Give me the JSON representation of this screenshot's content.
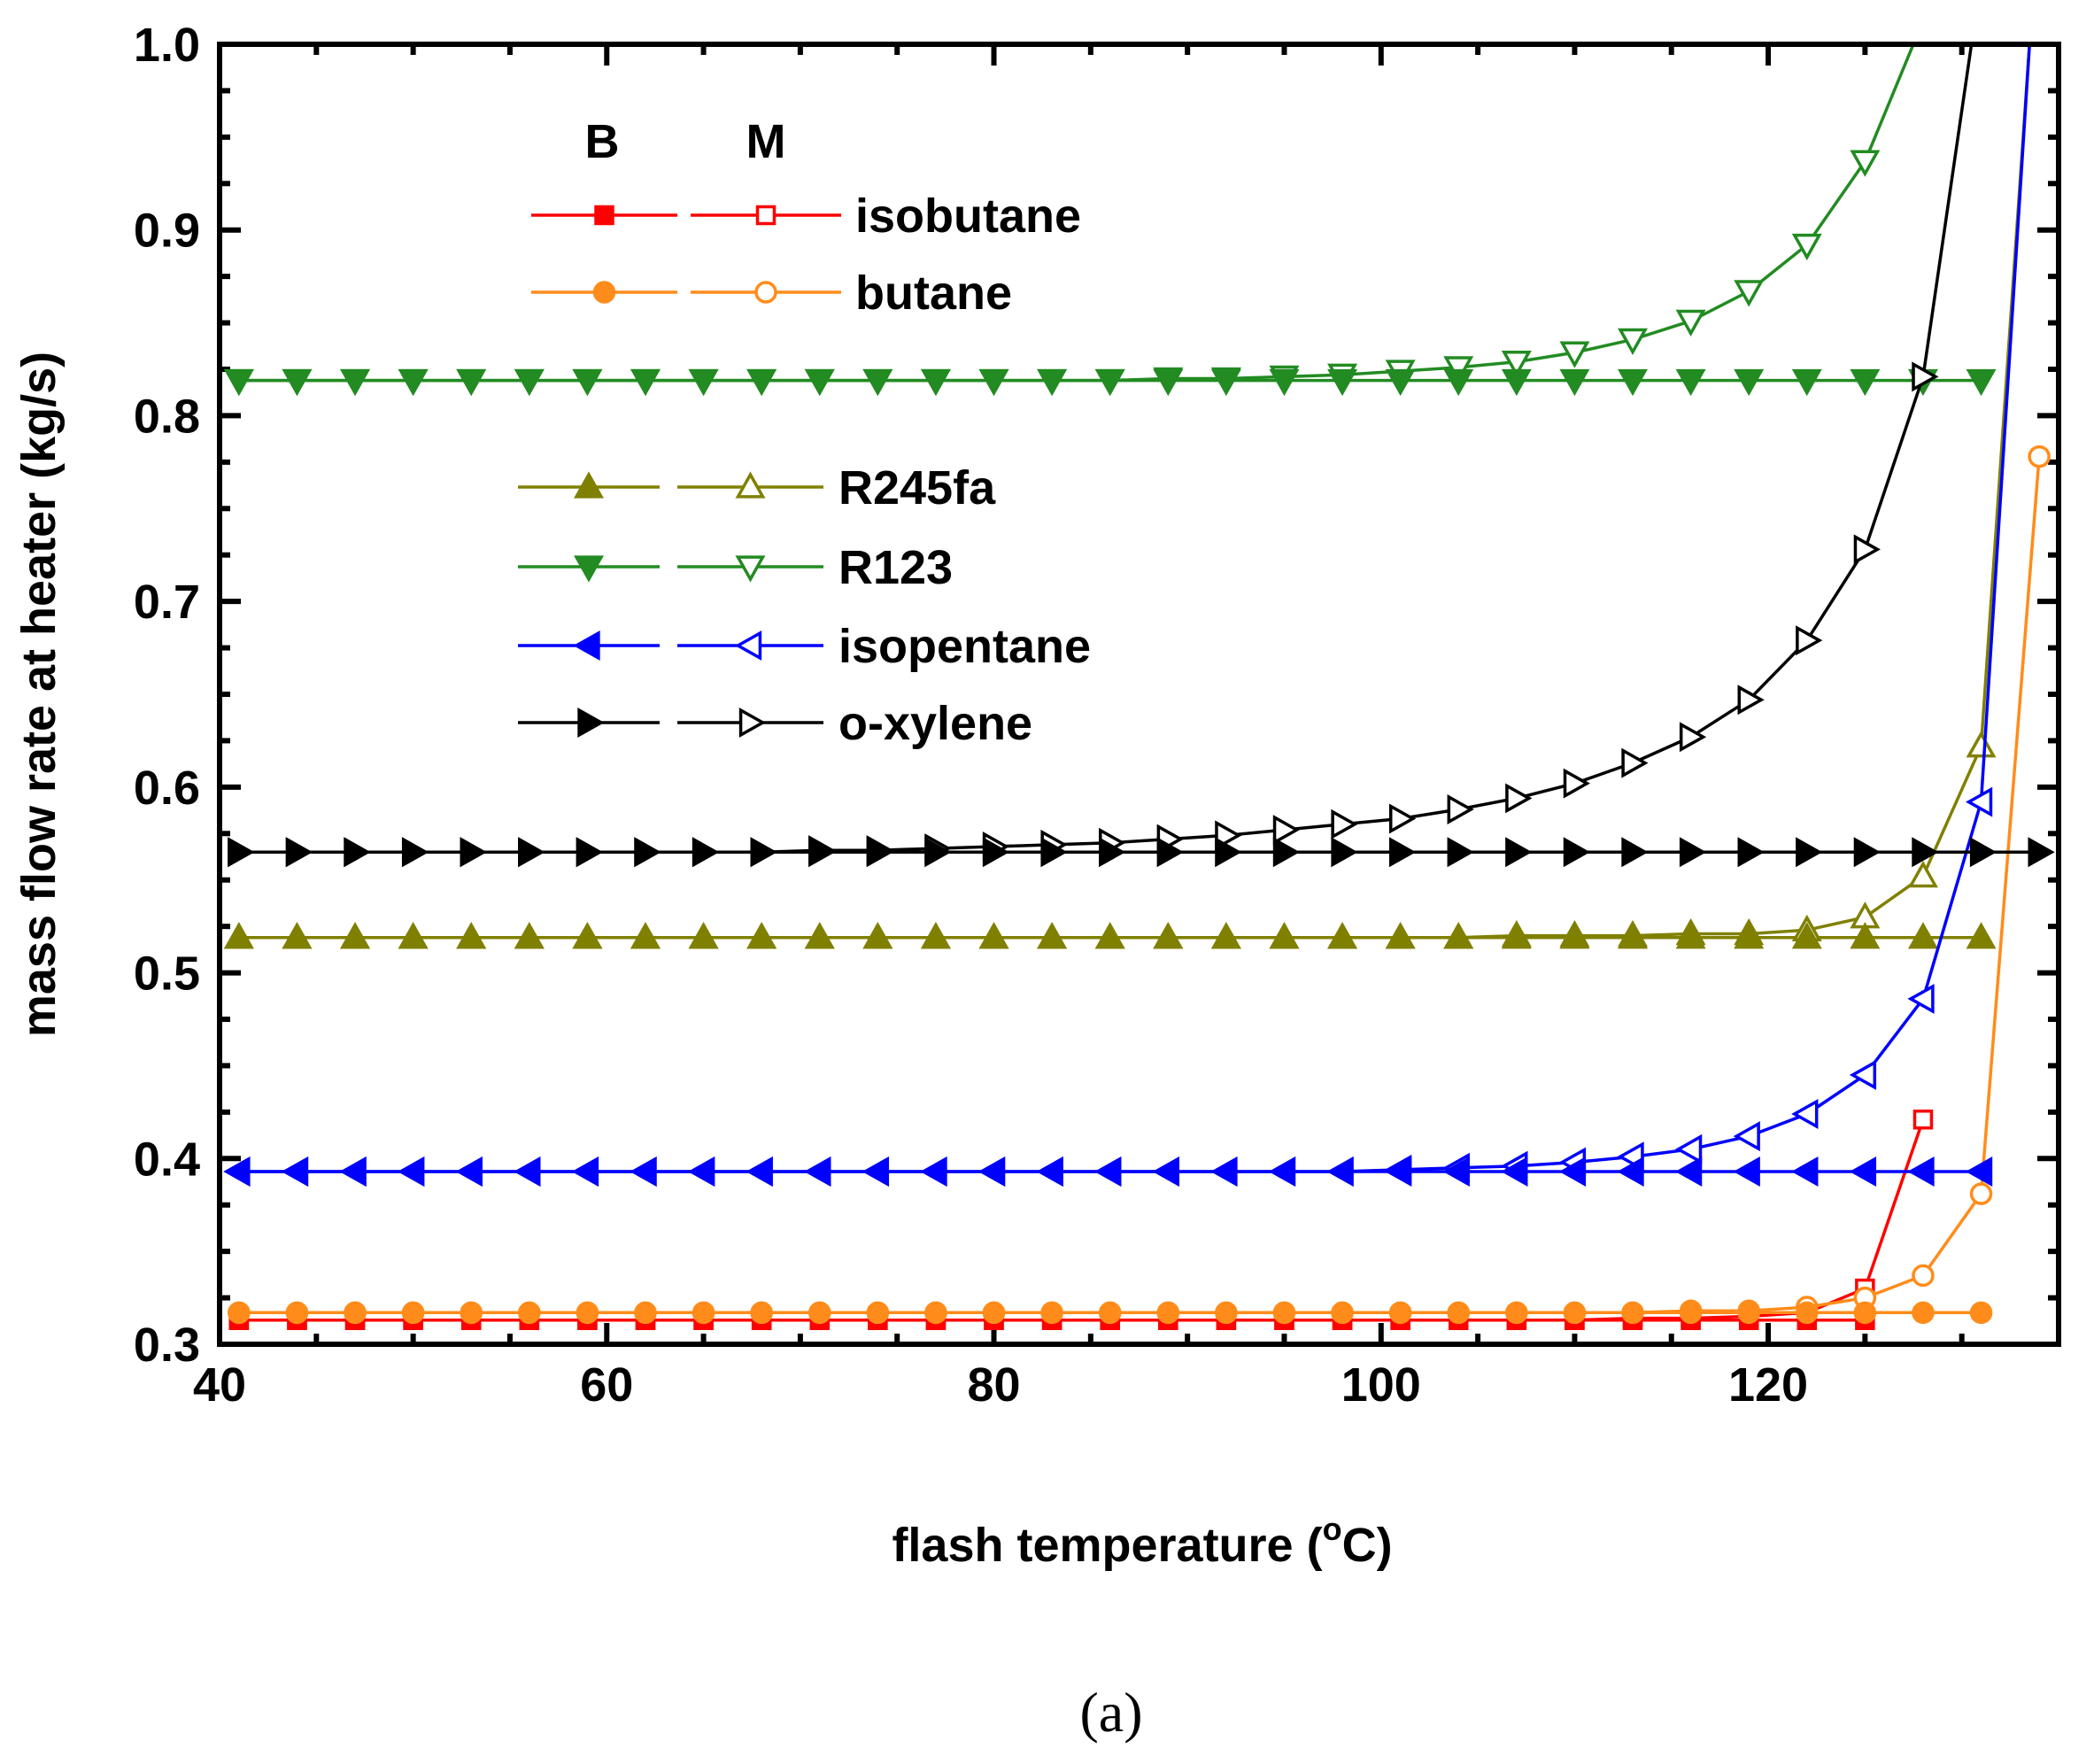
{
  "chart_data": {
    "type": "line",
    "xlabel": "flash temperature (",
    "xlabel_unit_sup": "o",
    "xlabel_unit": "C)",
    "ylabel": "mass flow rate at heater (kg/s)",
    "xlim": [
      40,
      135
    ],
    "ylim": [
      0.3,
      1.0
    ],
    "x_ticks": [
      40,
      60,
      80,
      100,
      120
    ],
    "x_tick_labels": [
      "40",
      "60",
      "80",
      "100",
      "120"
    ],
    "y_ticks": [
      0.3,
      0.4,
      0.5,
      0.6,
      0.7,
      0.8,
      0.9,
      1.0
    ],
    "y_tick_labels": [
      "0.3",
      "0.4",
      "0.5",
      "0.6",
      "0.7",
      "0.8",
      "0.9",
      "1.0"
    ],
    "caption": "(a)",
    "legend_headers": [
      "B",
      "M"
    ],
    "series": [
      {
        "name": "isobutane",
        "color": "#ff0000",
        "marker": "square",
        "B": {
          "x": [
            41,
            44,
            47,
            50,
            53,
            56,
            59,
            62,
            65,
            68,
            71,
            74,
            77,
            80,
            83,
            86,
            89,
            92,
            95,
            98,
            101,
            104,
            107,
            110,
            113,
            116,
            119,
            122,
            125
          ],
          "y": [
            0.313,
            0.313,
            0.313,
            0.313,
            0.313,
            0.313,
            0.313,
            0.313,
            0.313,
            0.313,
            0.313,
            0.313,
            0.313,
            0.313,
            0.313,
            0.313,
            0.313,
            0.313,
            0.313,
            0.313,
            0.313,
            0.313,
            0.313,
            0.313,
            0.313,
            0.313,
            0.313,
            0.313,
            0.313
          ]
        },
        "M": {
          "x": [
            41,
            44,
            47,
            50,
            53,
            56,
            59,
            62,
            65,
            68,
            71,
            74,
            77,
            80,
            83,
            86,
            89,
            92,
            95,
            98,
            101,
            104,
            107,
            110,
            113,
            116,
            119,
            122,
            125,
            128
          ],
          "y": [
            0.313,
            0.313,
            0.313,
            0.313,
            0.313,
            0.313,
            0.313,
            0.313,
            0.313,
            0.313,
            0.313,
            0.313,
            0.313,
            0.313,
            0.313,
            0.313,
            0.313,
            0.313,
            0.313,
            0.313,
            0.313,
            0.313,
            0.313,
            0.313,
            0.314,
            0.314,
            0.315,
            0.317,
            0.33,
            0.421
          ]
        }
      },
      {
        "name": "butane",
        "color": "#ff8c1a",
        "marker": "circle",
        "B": {
          "x": [
            41,
            44,
            47,
            50,
            53,
            56,
            59,
            62,
            65,
            68,
            71,
            74,
            77,
            80,
            83,
            86,
            89,
            92,
            95,
            98,
            101,
            104,
            107,
            110,
            113,
            116,
            119,
            122,
            125,
            128,
            131
          ],
          "y": [
            0.317,
            0.317,
            0.317,
            0.317,
            0.317,
            0.317,
            0.317,
            0.317,
            0.317,
            0.317,
            0.317,
            0.317,
            0.317,
            0.317,
            0.317,
            0.317,
            0.317,
            0.317,
            0.317,
            0.317,
            0.317,
            0.317,
            0.317,
            0.317,
            0.317,
            0.317,
            0.317,
            0.317,
            0.317,
            0.317,
            0.317
          ]
        },
        "M": {
          "x": [
            41,
            44,
            47,
            50,
            53,
            56,
            59,
            62,
            65,
            68,
            71,
            74,
            77,
            80,
            83,
            86,
            89,
            92,
            95,
            98,
            101,
            104,
            107,
            110,
            113,
            116,
            119,
            122,
            125,
            128,
            131,
            134
          ],
          "y": [
            0.317,
            0.317,
            0.317,
            0.317,
            0.317,
            0.317,
            0.317,
            0.317,
            0.317,
            0.317,
            0.317,
            0.317,
            0.317,
            0.317,
            0.317,
            0.317,
            0.317,
            0.317,
            0.317,
            0.317,
            0.317,
            0.317,
            0.317,
            0.317,
            0.317,
            0.318,
            0.318,
            0.32,
            0.325,
            0.337,
            0.381,
            0.778
          ]
        }
      },
      {
        "name": "R245fa",
        "color": "#808000",
        "marker": "triangle-up",
        "B": {
          "x": [
            41,
            44,
            47,
            50,
            53,
            56,
            59,
            62,
            65,
            68,
            71,
            74,
            77,
            80,
            83,
            86,
            89,
            92,
            95,
            98,
            101,
            104,
            107,
            110,
            113,
            116,
            119,
            122,
            125,
            128,
            131
          ],
          "y": [
            0.519,
            0.519,
            0.519,
            0.519,
            0.519,
            0.519,
            0.519,
            0.519,
            0.519,
            0.519,
            0.519,
            0.519,
            0.519,
            0.519,
            0.519,
            0.519,
            0.519,
            0.519,
            0.519,
            0.519,
            0.519,
            0.519,
            0.519,
            0.519,
            0.519,
            0.519,
            0.519,
            0.519,
            0.519,
            0.519,
            0.519
          ]
        },
        "M": {
          "x": [
            41,
            44,
            47,
            50,
            53,
            56,
            59,
            62,
            65,
            68,
            71,
            74,
            77,
            80,
            83,
            86,
            89,
            92,
            95,
            98,
            101,
            104,
            107,
            110,
            113,
            116,
            119,
            122,
            125,
            128,
            131,
            133.5
          ],
          "y": [
            0.519,
            0.519,
            0.519,
            0.519,
            0.519,
            0.519,
            0.519,
            0.519,
            0.519,
            0.519,
            0.519,
            0.519,
            0.519,
            0.519,
            0.519,
            0.519,
            0.519,
            0.519,
            0.519,
            0.519,
            0.519,
            0.519,
            0.52,
            0.52,
            0.52,
            0.521,
            0.521,
            0.523,
            0.53,
            0.552,
            0.622,
            1.0
          ]
        }
      },
      {
        "name": "R123",
        "color": "#228b22",
        "marker": "triangle-down",
        "B": {
          "x": [
            41,
            44,
            47,
            50,
            53,
            56,
            59,
            62,
            65,
            68,
            71,
            74,
            77,
            80,
            83,
            86,
            89,
            92,
            95,
            98,
            101,
            104,
            107,
            110,
            113,
            116,
            119,
            122,
            125,
            128,
            131
          ],
          "y": [
            0.819,
            0.819,
            0.819,
            0.819,
            0.819,
            0.819,
            0.819,
            0.819,
            0.819,
            0.819,
            0.819,
            0.819,
            0.819,
            0.819,
            0.819,
            0.819,
            0.819,
            0.819,
            0.819,
            0.819,
            0.819,
            0.819,
            0.819,
            0.819,
            0.819,
            0.819,
            0.819,
            0.819,
            0.819,
            0.819,
            0.819
          ]
        },
        "M": {
          "x": [
            41,
            44,
            47,
            50,
            53,
            56,
            59,
            62,
            65,
            68,
            71,
            74,
            77,
            80,
            83,
            86,
            89,
            92,
            95,
            98,
            101,
            104,
            107,
            110,
            113,
            116,
            119,
            122,
            125,
            127.5
          ],
          "y": [
            0.819,
            0.819,
            0.819,
            0.819,
            0.819,
            0.819,
            0.819,
            0.819,
            0.819,
            0.819,
            0.819,
            0.819,
            0.819,
            0.819,
            0.819,
            0.819,
            0.82,
            0.82,
            0.821,
            0.822,
            0.824,
            0.826,
            0.829,
            0.834,
            0.841,
            0.851,
            0.867,
            0.892,
            0.937,
            1.0
          ]
        }
      },
      {
        "name": "isopentane",
        "color": "#0000ff",
        "marker": "triangle-left",
        "B": {
          "x": [
            41,
            44,
            47,
            50,
            53,
            56,
            59,
            62,
            65,
            68,
            71,
            74,
            77,
            80,
            83,
            86,
            89,
            92,
            95,
            98,
            101,
            104,
            107,
            110,
            113,
            116,
            119,
            122,
            125,
            128,
            131
          ],
          "y": [
            0.393,
            0.393,
            0.393,
            0.393,
            0.393,
            0.393,
            0.393,
            0.393,
            0.393,
            0.393,
            0.393,
            0.393,
            0.393,
            0.393,
            0.393,
            0.393,
            0.393,
            0.393,
            0.393,
            0.393,
            0.393,
            0.393,
            0.393,
            0.393,
            0.393,
            0.393,
            0.393,
            0.393,
            0.393,
            0.393,
            0.393
          ]
        },
        "M": {
          "x": [
            41,
            44,
            47,
            50,
            53,
            56,
            59,
            62,
            65,
            68,
            71,
            74,
            77,
            80,
            83,
            86,
            89,
            92,
            95,
            98,
            101,
            104,
            107,
            110,
            113,
            116,
            119,
            122,
            125,
            128,
            131,
            133.5
          ],
          "y": [
            0.393,
            0.393,
            0.393,
            0.393,
            0.393,
            0.393,
            0.393,
            0.393,
            0.393,
            0.393,
            0.393,
            0.393,
            0.393,
            0.393,
            0.393,
            0.393,
            0.393,
            0.393,
            0.393,
            0.393,
            0.394,
            0.395,
            0.396,
            0.398,
            0.401,
            0.405,
            0.412,
            0.424,
            0.445,
            0.486,
            0.592,
            1.0
          ]
        }
      },
      {
        "name": "o-xylene",
        "color": "#000000",
        "marker": "triangle-right",
        "B": {
          "x": [
            41,
            44,
            47,
            50,
            53,
            56,
            59,
            62,
            65,
            68,
            71,
            74,
            77,
            80,
            83,
            86,
            89,
            92,
            95,
            98,
            101,
            104,
            107,
            110,
            113,
            116,
            119,
            122,
            125,
            128,
            131,
            134
          ],
          "y": [
            0.565,
            0.565,
            0.565,
            0.565,
            0.565,
            0.565,
            0.565,
            0.565,
            0.565,
            0.565,
            0.565,
            0.565,
            0.565,
            0.565,
            0.565,
            0.565,
            0.565,
            0.565,
            0.565,
            0.565,
            0.565,
            0.565,
            0.565,
            0.565,
            0.565,
            0.565,
            0.565,
            0.565,
            0.565,
            0.565,
            0.565,
            0.565
          ]
        },
        "M": {
          "x": [
            41,
            44,
            47,
            50,
            53,
            56,
            59,
            62,
            65,
            68,
            71,
            74,
            77,
            80,
            83,
            86,
            89,
            92,
            95,
            98,
            101,
            104,
            107,
            110,
            113,
            116,
            119,
            122,
            125,
            128,
            130.5
          ],
          "y": [
            0.565,
            0.565,
            0.565,
            0.565,
            0.565,
            0.565,
            0.565,
            0.565,
            0.565,
            0.565,
            0.566,
            0.566,
            0.567,
            0.568,
            0.569,
            0.57,
            0.572,
            0.574,
            0.577,
            0.58,
            0.583,
            0.588,
            0.594,
            0.602,
            0.613,
            0.627,
            0.647,
            0.679,
            0.728,
            0.821,
            1.0
          ]
        }
      }
    ]
  }
}
